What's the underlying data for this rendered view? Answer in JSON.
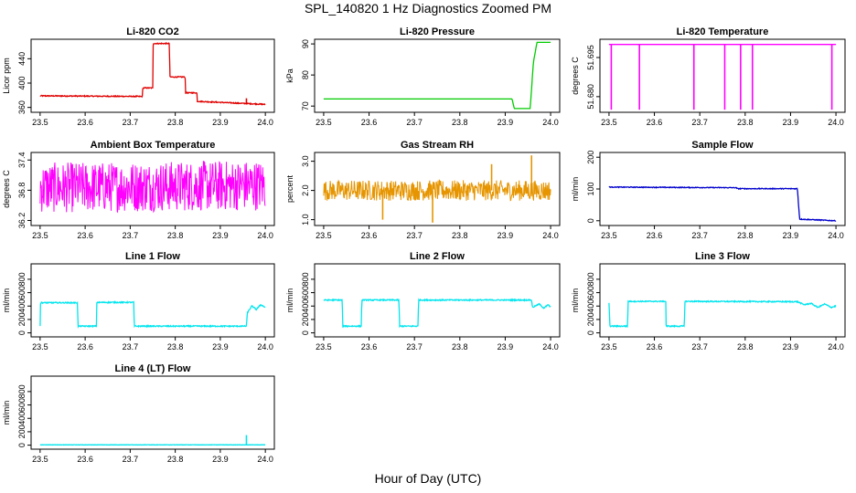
{
  "figure": {
    "title": "SPL_140820  1 Hz Diagnostics Zoomed PM",
    "xlabel": "Hour of Day (UTC)"
  },
  "chart_data": [
    {
      "type": "line",
      "title": "Li-820 CO2",
      "ylabel": "Licor ppm",
      "color": "#e00000",
      "xlim": [
        23.48,
        24.02
      ],
      "ylim": [
        352,
        472
      ],
      "yticks": [
        "360",
        "400",
        "440"
      ],
      "ytick_values": [
        360,
        400,
        440
      ],
      "xticks": [
        "23.5",
        "23.6",
        "23.7",
        "23.8",
        "23.9",
        "24.0"
      ],
      "noise": 0.8,
      "spikes": [
        [
          23.958,
          375
        ]
      ],
      "points": [
        [
          23.5,
          379
        ],
        [
          23.727,
          378
        ],
        [
          23.728,
          392
        ],
        [
          23.75,
          392
        ],
        [
          23.751,
          465
        ],
        [
          23.787,
          465
        ],
        [
          23.788,
          410
        ],
        [
          23.822,
          410
        ],
        [
          23.823,
          384
        ],
        [
          23.848,
          384
        ],
        [
          23.849,
          370
        ],
        [
          24.0,
          365
        ]
      ]
    },
    {
      "type": "line",
      "title": "Li-820 Pressure",
      "ylabel": "kPa",
      "color": "#00cc00",
      "xlim": [
        23.48,
        24.02
      ],
      "ylim": [
        68,
        91.5
      ],
      "yticks": [
        "70",
        "80",
        "90"
      ],
      "ytick_values": [
        70,
        80,
        90
      ],
      "xticks": [
        "23.5",
        "23.6",
        "23.7",
        "23.8",
        "23.9",
        "24.0"
      ],
      "noise": 0,
      "spikes": [],
      "points": [
        [
          23.5,
          72.3
        ],
        [
          23.915,
          72.3
        ],
        [
          23.92,
          69.2
        ],
        [
          23.955,
          69.2
        ],
        [
          23.962,
          84
        ],
        [
          23.97,
          90.5
        ],
        [
          24.0,
          90.5
        ]
      ]
    },
    {
      "type": "line",
      "title": "Li-820 Temperature",
      "ylabel": "degrees C",
      "color": "#ff00ff",
      "xlim": [
        23.48,
        24.02
      ],
      "ylim": [
        51.674,
        51.702
      ],
      "yticks": [
        "51.680",
        "51.695"
      ],
      "ytick_values": [
        51.68,
        51.695
      ],
      "xticks": [
        "23.5",
        "23.6",
        "23.7",
        "23.8",
        "23.9",
        "24.0"
      ],
      "noise": 0,
      "spikes": [
        [
          23.505,
          51.675
        ],
        [
          23.567,
          51.675
        ],
        [
          23.687,
          51.675
        ],
        [
          23.755,
          51.675
        ],
        [
          23.79,
          51.675
        ],
        [
          23.816,
          51.675
        ],
        [
          23.991,
          51.675
        ]
      ],
      "points": [
        [
          23.5,
          51.7
        ],
        [
          24.0,
          51.7
        ]
      ]
    },
    {
      "type": "line",
      "title": "Ambient Box Temperature",
      "ylabel": "degrees C",
      "color": "#ff00ff",
      "xlim": [
        23.48,
        24.02
      ],
      "ylim": [
        36.1,
        37.55
      ],
      "yticks": [
        "36.2",
        "36.8",
        "37.4"
      ],
      "ytick_values": [
        36.2,
        36.8,
        37.4
      ],
      "xticks": [
        "23.5",
        "23.6",
        "23.7",
        "23.8",
        "23.9",
        "24.0"
      ],
      "noise": 0.5,
      "spikes": [],
      "points": [
        [
          23.5,
          36.85
        ],
        [
          24.0,
          36.9
        ]
      ]
    },
    {
      "type": "line",
      "title": "Gas Stream RH",
      "ylabel": "percent",
      "color": "#e69500",
      "xlim": [
        23.48,
        24.02
      ],
      "ylim": [
        0.8,
        3.3
      ],
      "yticks": [
        "1.0",
        "2.0",
        "3.0"
      ],
      "ytick_values": [
        1.0,
        2.0,
        3.0
      ],
      "xticks": [
        "23.5",
        "23.6",
        "23.7",
        "23.8",
        "23.9",
        "24.0"
      ],
      "noise": 0.35,
      "spikes": [
        [
          23.63,
          1.0
        ],
        [
          23.74,
          0.9
        ],
        [
          23.87,
          2.9
        ],
        [
          23.958,
          3.2
        ]
      ],
      "points": [
        [
          23.5,
          2.0
        ],
        [
          24.0,
          2.0
        ]
      ]
    },
    {
      "type": "line",
      "title": "Sample Flow",
      "ylabel": "ml/min",
      "color": "#0000cc",
      "xlim": [
        23.48,
        24.02
      ],
      "ylim": [
        -15,
        215
      ],
      "yticks": [
        "0",
        "100",
        "200"
      ],
      "ytick_values": [
        0,
        100,
        200
      ],
      "xticks": [
        "23.5",
        "23.6",
        "23.7",
        "23.8",
        "23.9",
        "24.0"
      ],
      "noise": 1.2,
      "spikes": [],
      "points": [
        [
          23.5,
          106
        ],
        [
          23.78,
          104
        ],
        [
          23.783,
          101
        ],
        [
          23.915,
          101
        ],
        [
          23.92,
          5
        ],
        [
          24.0,
          0
        ]
      ]
    },
    {
      "type": "line",
      "title": "Line 1 Flow",
      "ylabel": "ml/min",
      "color": "#00e5ee",
      "xlim": [
        23.48,
        24.02
      ],
      "ylim": [
        -60,
        1030
      ],
      "yticks": [
        "0",
        "200",
        "400",
        "600",
        "800"
      ],
      "ytick_values": [
        0,
        200,
        400,
        600,
        800
      ],
      "xticks": [
        "23.5",
        "23.6",
        "23.7",
        "23.8",
        "23.9",
        "24.0"
      ],
      "noise": 8,
      "spikes": [],
      "points": [
        [
          23.5,
          100
        ],
        [
          23.501,
          450
        ],
        [
          23.583,
          450
        ],
        [
          23.584,
          100
        ],
        [
          23.625,
          100
        ],
        [
          23.626,
          455
        ],
        [
          23.708,
          455
        ],
        [
          23.709,
          100
        ],
        [
          23.958,
          100
        ],
        [
          23.96,
          300
        ],
        [
          23.97,
          400
        ],
        [
          23.98,
          350
        ],
        [
          23.99,
          420
        ],
        [
          24.0,
          380
        ]
      ]
    },
    {
      "type": "line",
      "title": "Line 2 Flow",
      "ylabel": "ml/min",
      "color": "#00e5ee",
      "xlim": [
        23.48,
        24.02
      ],
      "ylim": [
        -60,
        1030
      ],
      "yticks": [
        "0",
        "200",
        "400",
        "600",
        "800"
      ],
      "ytick_values": [
        0,
        200,
        400,
        600,
        800
      ],
      "xticks": [
        "23.5",
        "23.6",
        "23.7",
        "23.8",
        "23.9",
        "24.0"
      ],
      "noise": 8,
      "spikes": [],
      "points": [
        [
          23.5,
          490
        ],
        [
          23.541,
          490
        ],
        [
          23.542,
          100
        ],
        [
          23.583,
          100
        ],
        [
          23.584,
          490
        ],
        [
          23.666,
          490
        ],
        [
          23.667,
          100
        ],
        [
          23.708,
          100
        ],
        [
          23.709,
          490
        ],
        [
          23.958,
          490
        ],
        [
          23.96,
          380
        ],
        [
          23.975,
          430
        ],
        [
          23.985,
          370
        ],
        [
          23.995,
          420
        ],
        [
          24.0,
          380
        ]
      ]
    },
    {
      "type": "line",
      "title": "Line 3 Flow",
      "ylabel": "ml/min",
      "color": "#00e5ee",
      "xlim": [
        23.48,
        24.02
      ],
      "ylim": [
        -60,
        1030
      ],
      "yticks": [
        "0",
        "200",
        "400",
        "600",
        "800"
      ],
      "ytick_values": [
        0,
        200,
        400,
        600,
        800
      ],
      "xticks": [
        "23.5",
        "23.6",
        "23.7",
        "23.8",
        "23.9",
        "24.0"
      ],
      "noise": 8,
      "spikes": [],
      "points": [
        [
          23.5,
          450
        ],
        [
          23.502,
          100
        ],
        [
          23.541,
          100
        ],
        [
          23.542,
          470
        ],
        [
          23.625,
          470
        ],
        [
          23.626,
          100
        ],
        [
          23.666,
          100
        ],
        [
          23.667,
          470
        ],
        [
          23.915,
          465
        ],
        [
          23.93,
          420
        ],
        [
          23.945,
          440
        ],
        [
          23.96,
          380
        ],
        [
          23.975,
          430
        ],
        [
          23.99,
          380
        ],
        [
          24.0,
          400
        ]
      ]
    },
    {
      "type": "line",
      "title": "Line 4 (LT) Flow",
      "ylabel": "ml/min",
      "color": "#00e5ee",
      "xlim": [
        23.48,
        24.02
      ],
      "ylim": [
        -60,
        1030
      ],
      "yticks": [
        "0",
        "200",
        "400",
        "600",
        "800"
      ],
      "ytick_values": [
        0,
        200,
        400,
        600,
        800
      ],
      "xticks": [
        "23.5",
        "23.6",
        "23.7",
        "23.8",
        "23.9",
        "24.0"
      ],
      "noise": 2,
      "spikes": [
        [
          23.958,
          150
        ]
      ],
      "points": [
        [
          23.5,
          5
        ],
        [
          24.0,
          5
        ]
      ]
    }
  ]
}
